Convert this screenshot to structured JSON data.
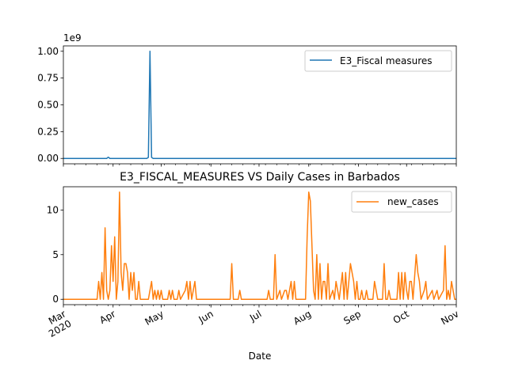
{
  "chart_data": [
    {
      "type": "line",
      "title": "",
      "xlabel": "",
      "ylabel": "",
      "offset_text": "1e9",
      "ylim": [
        -0.05,
        1.05
      ],
      "yticks": [
        0.0,
        0.25,
        0.5,
        0.75,
        1.0
      ],
      "ytick_labels": [
        "0.00",
        "0.25",
        "0.50",
        "0.75",
        "1.00"
      ],
      "legend_position": "upper-right",
      "grid": false,
      "series": [
        {
          "name": "E3_Fiscal measures",
          "color": "#1f77b4",
          "points": [
            [
              "2020-03-01",
              0
            ],
            [
              "2020-03-28",
              0
            ],
            [
              "2020-03-29",
              0.012
            ],
            [
              "2020-03-30",
              0
            ],
            [
              "2020-04-22",
              0
            ],
            [
              "2020-04-23",
              0.01
            ],
            [
              "2020-04-24",
              1.0
            ],
            [
              "2020-04-25",
              0.01
            ],
            [
              "2020-04-26",
              0
            ],
            [
              "2020-11-01",
              0
            ]
          ]
        }
      ]
    },
    {
      "type": "line",
      "title": "E3_FISCAL_MEASURES VS Daily Cases in Barbados",
      "xlabel": "Date",
      "ylabel": "",
      "ylim": [
        -0.6,
        12.6
      ],
      "yticks": [
        0,
        5,
        10
      ],
      "ytick_labels": [
        "0",
        "5",
        "10"
      ],
      "xlim": [
        "2020-03-01",
        "2020-11-01"
      ],
      "xticks": [
        {
          "date": "2020-03-01",
          "label": "Mar\n2020"
        },
        {
          "date": "2020-04-01",
          "label": "Apr"
        },
        {
          "date": "2020-05-01",
          "label": "May"
        },
        {
          "date": "2020-06-01",
          "label": "Jun"
        },
        {
          "date": "2020-07-01",
          "label": "Jul"
        },
        {
          "date": "2020-08-01",
          "label": "Aug"
        },
        {
          "date": "2020-09-01",
          "label": "Sep"
        },
        {
          "date": "2020-10-01",
          "label": "Oct"
        },
        {
          "date": "2020-11-01",
          "label": "Nov"
        }
      ],
      "legend_position": "upper-right",
      "grid": false,
      "series": [
        {
          "name": "new_cases",
          "color": "#ff7f0e",
          "points": [
            [
              "2020-03-01",
              0
            ],
            [
              "2020-03-22",
              0
            ],
            [
              "2020-03-23",
              2
            ],
            [
              "2020-03-24",
              0
            ],
            [
              "2020-03-25",
              3
            ],
            [
              "2020-03-26",
              0
            ],
            [
              "2020-03-27",
              8
            ],
            [
              "2020-03-28",
              1
            ],
            [
              "2020-03-29",
              0
            ],
            [
              "2020-03-30",
              1
            ],
            [
              "2020-03-31",
              6
            ],
            [
              "2020-04-01",
              2
            ],
            [
              "2020-04-02",
              7
            ],
            [
              "2020-04-03",
              0
            ],
            [
              "2020-04-04",
              2
            ],
            [
              "2020-04-05",
              12
            ],
            [
              "2020-04-06",
              3
            ],
            [
              "2020-04-07",
              1
            ],
            [
              "2020-04-08",
              4
            ],
            [
              "2020-04-09",
              4
            ],
            [
              "2020-04-10",
              3
            ],
            [
              "2020-04-11",
              0
            ],
            [
              "2020-04-12",
              3
            ],
            [
              "2020-04-13",
              1
            ],
            [
              "2020-04-14",
              3
            ],
            [
              "2020-04-15",
              0
            ],
            [
              "2020-04-16",
              0
            ],
            [
              "2020-04-17",
              2
            ],
            [
              "2020-04-18",
              0
            ],
            [
              "2020-04-23",
              0
            ],
            [
              "2020-04-24",
              1
            ],
            [
              "2020-04-25",
              2
            ],
            [
              "2020-04-26",
              0
            ],
            [
              "2020-04-27",
              1
            ],
            [
              "2020-04-28",
              0
            ],
            [
              "2020-04-29",
              1
            ],
            [
              "2020-04-30",
              0
            ],
            [
              "2020-05-01",
              1
            ],
            [
              "2020-05-02",
              0
            ],
            [
              "2020-05-05",
              0
            ],
            [
              "2020-05-06",
              1
            ],
            [
              "2020-05-07",
              0
            ],
            [
              "2020-05-08",
              1
            ],
            [
              "2020-05-09",
              0
            ],
            [
              "2020-05-11",
              0
            ],
            [
              "2020-05-12",
              1
            ],
            [
              "2020-05-13",
              0
            ],
            [
              "2020-05-16",
              1
            ],
            [
              "2020-05-17",
              2
            ],
            [
              "2020-05-18",
              0
            ],
            [
              "2020-05-19",
              2
            ],
            [
              "2020-05-20",
              0
            ],
            [
              "2020-05-21",
              1
            ],
            [
              "2020-05-22",
              2
            ],
            [
              "2020-05-23",
              0
            ],
            [
              "2020-06-13",
              0
            ],
            [
              "2020-06-14",
              4
            ],
            [
              "2020-06-15",
              0
            ],
            [
              "2020-06-18",
              0
            ],
            [
              "2020-06-19",
              1
            ],
            [
              "2020-06-20",
              0
            ],
            [
              "2020-07-06",
              0
            ],
            [
              "2020-07-07",
              1
            ],
            [
              "2020-07-08",
              0
            ],
            [
              "2020-07-10",
              0
            ],
            [
              "2020-07-11",
              5
            ],
            [
              "2020-07-12",
              0
            ],
            [
              "2020-07-14",
              1
            ],
            [
              "2020-07-15",
              0
            ],
            [
              "2020-07-17",
              1
            ],
            [
              "2020-07-18",
              1
            ],
            [
              "2020-07-19",
              0
            ],
            [
              "2020-07-21",
              2
            ],
            [
              "2020-07-22",
              0
            ],
            [
              "2020-07-23",
              2
            ],
            [
              "2020-07-24",
              0
            ],
            [
              "2020-07-30",
              0
            ],
            [
              "2020-07-31",
              7
            ],
            [
              "2020-08-01",
              12
            ],
            [
              "2020-08-02",
              11
            ],
            [
              "2020-08-03",
              6
            ],
            [
              "2020-08-04",
              1
            ],
            [
              "2020-08-05",
              0
            ],
            [
              "2020-08-06",
              5
            ],
            [
              "2020-08-07",
              0
            ],
            [
              "2020-08-08",
              4
            ],
            [
              "2020-08-09",
              0
            ],
            [
              "2020-08-10",
              2
            ],
            [
              "2020-08-11",
              2
            ],
            [
              "2020-08-12",
              0
            ],
            [
              "2020-08-13",
              4
            ],
            [
              "2020-08-14",
              0
            ],
            [
              "2020-08-16",
              1
            ],
            [
              "2020-08-17",
              0
            ],
            [
              "2020-08-18",
              2
            ],
            [
              "2020-08-19",
              1
            ],
            [
              "2020-08-20",
              0
            ],
            [
              "2020-08-22",
              3
            ],
            [
              "2020-08-23",
              0
            ],
            [
              "2020-08-24",
              3
            ],
            [
              "2020-08-25",
              0
            ],
            [
              "2020-08-27",
              4
            ],
            [
              "2020-08-28",
              3
            ],
            [
              "2020-08-29",
              2
            ],
            [
              "2020-08-30",
              0
            ],
            [
              "2020-08-31",
              2
            ],
            [
              "2020-09-01",
              0
            ],
            [
              "2020-09-02",
              0
            ],
            [
              "2020-09-03",
              1
            ],
            [
              "2020-09-04",
              0
            ],
            [
              "2020-09-05",
              0
            ],
            [
              "2020-09-06",
              1
            ],
            [
              "2020-09-07",
              0
            ],
            [
              "2020-09-10",
              0
            ],
            [
              "2020-09-11",
              2
            ],
            [
              "2020-09-12",
              1
            ],
            [
              "2020-09-13",
              0
            ],
            [
              "2020-09-16",
              0
            ],
            [
              "2020-09-17",
              4
            ],
            [
              "2020-09-18",
              0
            ],
            [
              "2020-09-19",
              0
            ],
            [
              "2020-09-20",
              1
            ],
            [
              "2020-09-21",
              0
            ],
            [
              "2020-09-25",
              0
            ],
            [
              "2020-09-26",
              3
            ],
            [
              "2020-09-27",
              0
            ],
            [
              "2020-09-28",
              3
            ],
            [
              "2020-09-29",
              0
            ],
            [
              "2020-09-30",
              3
            ],
            [
              "2020-10-01",
              1
            ],
            [
              "2020-10-02",
              0
            ],
            [
              "2020-10-03",
              2
            ],
            [
              "2020-10-04",
              2
            ],
            [
              "2020-10-05",
              0
            ],
            [
              "2020-10-07",
              5
            ],
            [
              "2020-10-08",
              3
            ],
            [
              "2020-10-09",
              2
            ],
            [
              "2020-10-10",
              0
            ],
            [
              "2020-10-12",
              1
            ],
            [
              "2020-10-13",
              2
            ],
            [
              "2020-10-14",
              0
            ],
            [
              "2020-10-17",
              1
            ],
            [
              "2020-10-18",
              0
            ],
            [
              "2020-10-20",
              1
            ],
            [
              "2020-10-21",
              0
            ],
            [
              "2020-10-24",
              1
            ],
            [
              "2020-10-25",
              6
            ],
            [
              "2020-10-26",
              0
            ],
            [
              "2020-10-27",
              1
            ],
            [
              "2020-10-28",
              0
            ],
            [
              "2020-10-29",
              2
            ],
            [
              "2020-10-30",
              1
            ],
            [
              "2020-10-31",
              0
            ],
            [
              "2020-11-01",
              0
            ]
          ]
        }
      ]
    }
  ]
}
